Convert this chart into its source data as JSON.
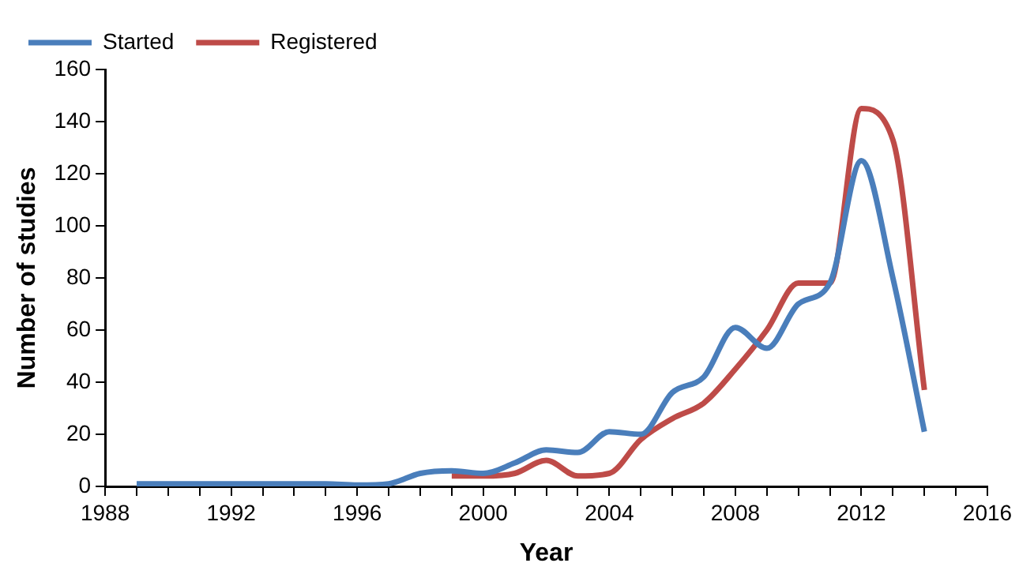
{
  "chart_data": {
    "type": "line",
    "xlabel": "Year",
    "ylabel": "Number of studies",
    "xlim": [
      1988,
      2016
    ],
    "xticks": [
      1988,
      {
        "value": 1989,
        "label": null
      },
      {
        "value": 1990,
        "label": null
      },
      {
        "value": 1991,
        "label": null
      },
      1992,
      {
        "value": 1993,
        "label": null
      },
      {
        "value": 1994,
        "label": null
      },
      {
        "value": 1995,
        "label": null
      },
      1996,
      {
        "value": 1997,
        "label": null
      },
      {
        "value": 1998,
        "label": null
      },
      {
        "value": 1999,
        "label": null
      },
      2000,
      {
        "value": 2001,
        "label": null
      },
      {
        "value": 2002,
        "label": null
      },
      {
        "value": 2003,
        "label": null
      },
      2004,
      {
        "value": 2005,
        "label": null
      },
      {
        "value": 2006,
        "label": null
      },
      {
        "value": 2007,
        "label": null
      },
      2008,
      {
        "value": 2009,
        "label": null
      },
      {
        "value": 2010,
        "label": null
      },
      {
        "value": 2011,
        "label": null
      },
      2012,
      {
        "value": 2013,
        "label": null
      },
      {
        "value": 2014,
        "label": null
      },
      {
        "value": 2015,
        "label": null
      },
      2016
    ],
    "ylim": [
      0,
      160
    ],
    "yticks": [
      0,
      20,
      40,
      60,
      80,
      100,
      120,
      140,
      160
    ],
    "grid": false,
    "legend": "top left",
    "marker": "none",
    "line_style": "solid",
    "series": [
      {
        "name": "Started",
        "color": "#4a7ebb",
        "x": [
          1989,
          1990,
          1991,
          1992,
          1993,
          1994,
          1995,
          1996,
          1997,
          1998,
          1999,
          2000,
          2001,
          2002,
          2003,
          2004,
          2005,
          2006,
          2007,
          2008,
          2009,
          2010,
          2011,
          2012,
          2013,
          2014
        ],
        "values": [
          1,
          1,
          1,
          1,
          1,
          1,
          1,
          0.5,
          1,
          5,
          6,
          5,
          9,
          14,
          13,
          21,
          20,
          36,
          42,
          61,
          53,
          70,
          78,
          125,
          80,
          21
        ]
      },
      {
        "name": "Registered",
        "color": "#be4b48",
        "x": [
          1999,
          2000,
          2001,
          2002,
          2003,
          2004,
          2005,
          2006,
          2007,
          2008,
          2009,
          2010,
          2011,
          2012,
          2013,
          2014
        ],
        "values": [
          4,
          4,
          5,
          10,
          4,
          5,
          18,
          26,
          32,
          45,
          60,
          78,
          78,
          145,
          133,
          37
        ]
      }
    ]
  }
}
